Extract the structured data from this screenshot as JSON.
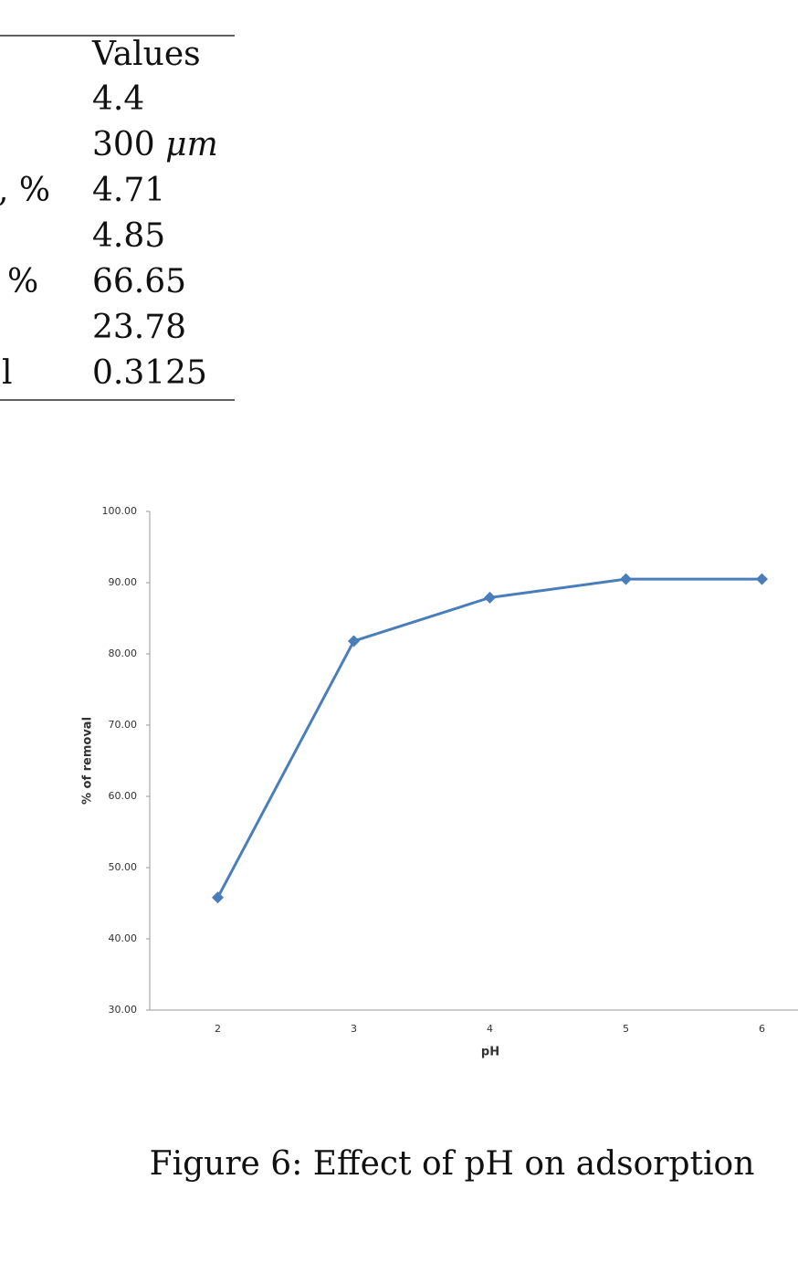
{
  "table": {
    "header": "Values",
    "rows": [
      {
        "value": "4.4"
      },
      {
        "value": "300",
        "unit": "μm"
      },
      {
        "label": ", %",
        "value": "4.71"
      },
      {
        "value": "4.85"
      },
      {
        "label": "%",
        "value": "66.65"
      },
      {
        "value": "23.78"
      },
      {
        "label": "l",
        "value": "0.3125"
      }
    ]
  },
  "chart_data": {
    "type": "line",
    "x_label": "pH",
    "y_label": "% of removal",
    "categories": [
      "2",
      "3",
      "4",
      "5",
      "6"
    ],
    "series": [
      {
        "name": "% of removal",
        "color": "#4a7ebb",
        "values": [
          45.8,
          81.8,
          87.9,
          90.5,
          90.5
        ]
      }
    ],
    "ylim": [
      30,
      100
    ],
    "yticks": [
      {
        "value": 30,
        "label": "30.00"
      },
      {
        "value": 40,
        "label": "40.00"
      },
      {
        "value": 50,
        "label": "50.00"
      },
      {
        "value": 60,
        "label": "60.00"
      },
      {
        "value": 70,
        "label": "70.00"
      },
      {
        "value": 80,
        "label": "80.00"
      },
      {
        "value": 90,
        "label": "90.00"
      },
      {
        "value": 100,
        "label": "100.00"
      }
    ],
    "grid": false,
    "marker": "diamond"
  },
  "caption": "Figure 6: Effect of pH on adsorption"
}
